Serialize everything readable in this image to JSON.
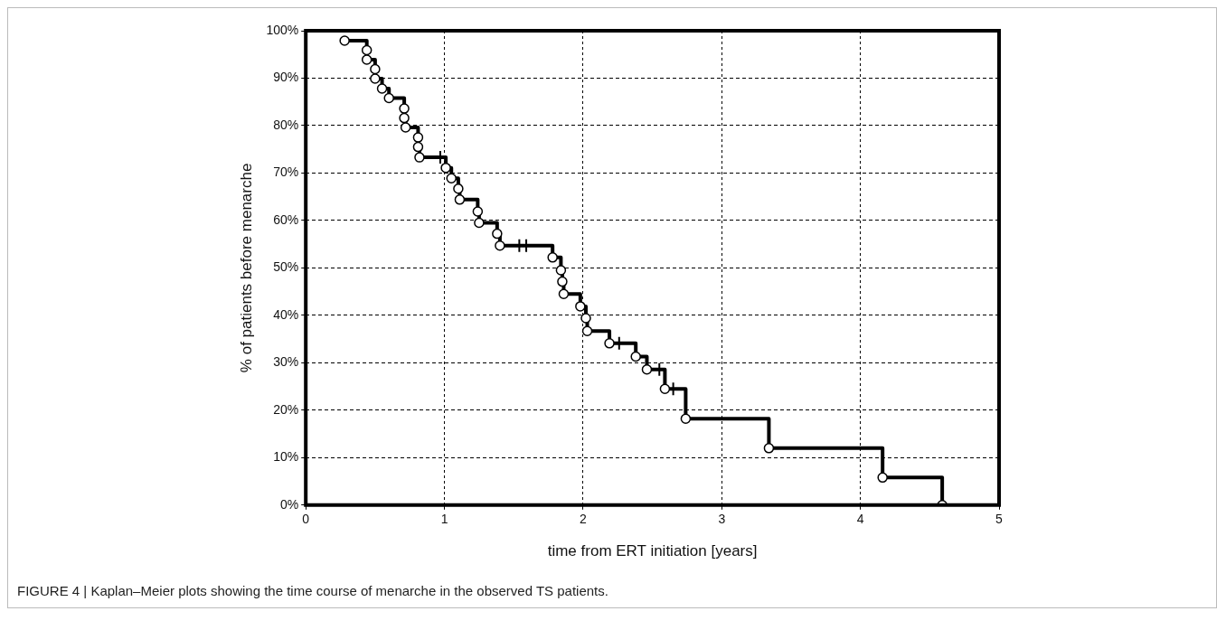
{
  "chart_data": {
    "type": "step",
    "xlabel": "time from ERT initiation [years]",
    "ylabel": "% of patients before menarche",
    "annotations": [
      "FIGURE 4 | Kaplan–Meier plots showing the time course of menarche in the observed TS patients."
    ],
    "xlim": [
      0,
      5
    ],
    "xticks": [
      0,
      1,
      2,
      3,
      4,
      5
    ],
    "ylim": [
      0,
      100
    ],
    "yticks": [
      {
        "value": 0,
        "label": "0%"
      },
      {
        "value": 10,
        "label": "10%"
      },
      {
        "value": 20,
        "label": "20%"
      },
      {
        "value": 30,
        "label": "30%"
      },
      {
        "value": 40,
        "label": "40%"
      },
      {
        "value": 50,
        "label": "50%"
      },
      {
        "value": 60,
        "label": "60%"
      },
      {
        "value": 70,
        "label": "70%"
      },
      {
        "value": 80,
        "label": "80%"
      },
      {
        "value": 90,
        "label": "90%"
      },
      {
        "value": 100,
        "label": "100%"
      }
    ],
    "grid": true,
    "legend": false,
    "line_style": "solid",
    "series": [
      {
        "marker": "circle",
        "color": "#000000",
        "x": [
          0.28,
          0.44,
          0.44,
          0.5,
          0.5,
          0.55,
          0.6,
          0.71,
          0.71,
          0.72,
          0.81,
          0.81,
          0.82,
          1.01,
          1.05,
          1.1,
          1.11,
          1.24,
          1.25,
          1.38,
          1.4,
          1.78,
          1.84,
          1.85,
          1.86,
          1.98,
          2.02,
          2.03,
          2.19,
          2.38,
          2.46,
          2.59,
          2.74,
          3.34,
          4.16,
          4.59
        ],
        "values": [
          97.9,
          95.9,
          93.9,
          91.9,
          89.9,
          87.8,
          85.8,
          83.6,
          81.6,
          79.6,
          77.5,
          75.5,
          73.3,
          71.1,
          68.9,
          66.7,
          64.4,
          61.9,
          59.5,
          57.2,
          54.7,
          52.2,
          49.5,
          47.1,
          44.5,
          41.9,
          39.4,
          36.7,
          34.1,
          31.3,
          28.6,
          24.5,
          18.2,
          12.0,
          5.8,
          0
        ]
      },
      {
        "type": "scatter",
        "marker": "cross",
        "color": "#000000",
        "x": [
          0.97,
          1.54,
          1.59,
          2.26,
          2.55,
          2.65
        ],
        "values": [
          73.3,
          54.7,
          54.7,
          34.1,
          28.6,
          24.5
        ]
      }
    ]
  }
}
